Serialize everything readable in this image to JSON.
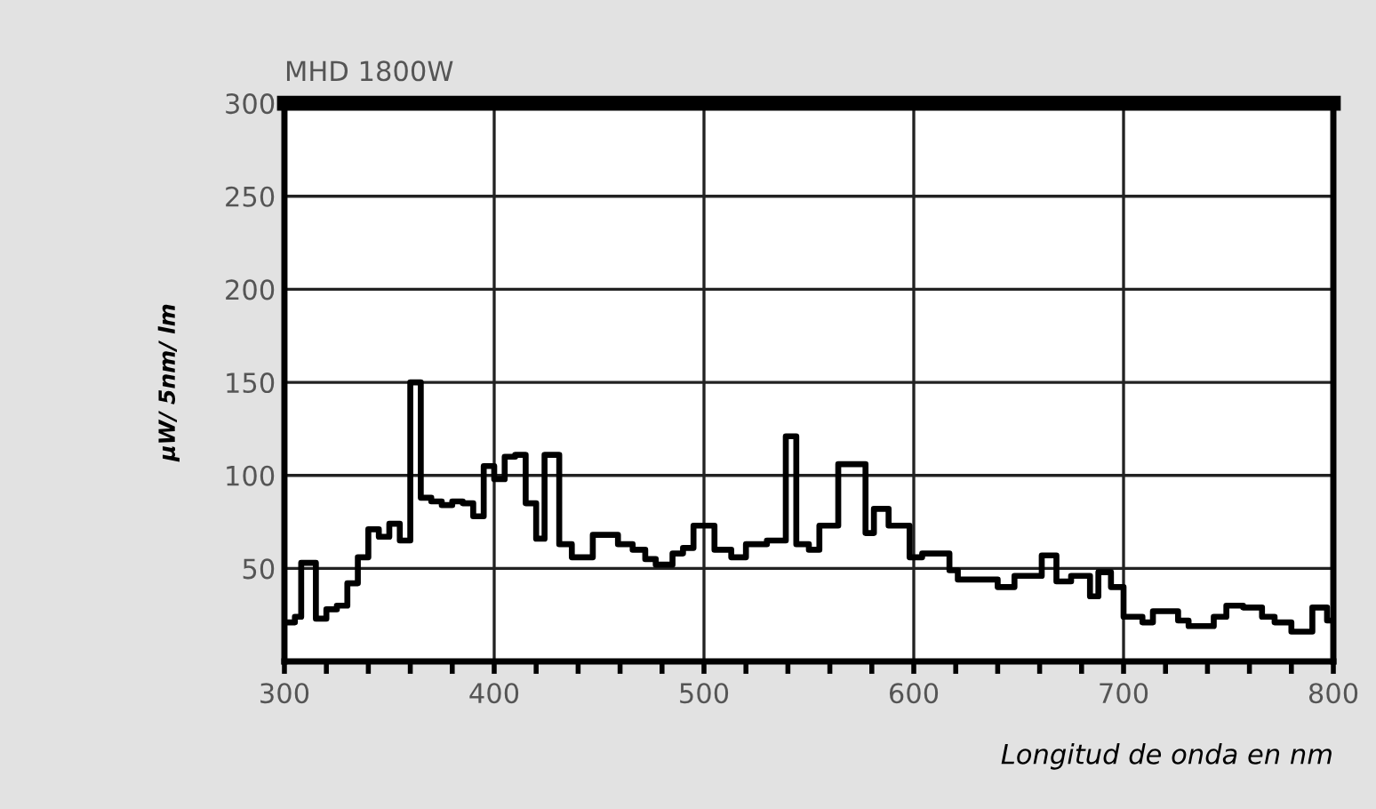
{
  "chart_data": {
    "type": "step",
    "title": "MHD 1800W",
    "ylabel": "µW/ 5nm/ lm",
    "xlabel": "Longitud de onda en nm",
    "x": [
      300,
      305,
      308,
      315,
      320,
      325,
      330,
      335,
      340,
      345,
      350,
      355,
      360,
      365,
      370,
      375,
      380,
      385,
      390,
      395,
      400,
      405,
      410,
      415,
      420,
      424,
      431,
      437,
      447,
      459,
      466,
      472,
      477,
      485,
      490,
      495,
      505,
      513,
      520,
      530,
      539,
      544,
      550,
      555,
      564,
      577,
      581,
      588,
      598,
      604,
      617,
      621,
      640,
      648,
      661,
      668,
      675,
      684,
      688,
      694,
      700,
      709,
      714,
      726,
      731,
      743,
      749,
      757,
      766,
      772,
      780,
      790,
      797,
      800
    ],
    "series": [
      {
        "color": "#000000",
        "values": [
          21,
          24,
          53,
          23,
          28,
          30,
          42,
          56,
          71,
          67,
          74,
          65,
          150,
          88,
          86,
          84,
          86,
          85,
          78,
          105,
          98,
          110,
          111,
          85,
          66,
          111,
          63,
          56,
          68,
          63,
          60,
          55,
          52,
          58,
          61,
          73,
          60,
          56,
          63,
          65,
          121,
          63,
          60,
          73,
          106,
          69,
          82,
          73,
          56,
          58,
          49,
          44,
          40,
          46,
          57,
          43,
          46,
          35,
          48,
          40,
          24,
          21,
          27,
          22,
          19,
          24,
          30,
          29,
          24,
          21,
          16,
          29,
          22,
          22
        ]
      }
    ],
    "xlim": [
      300,
      800
    ],
    "ylim": [
      0,
      300
    ],
    "xticks": [
      300,
      {
        "value": 320,
        "label": null
      },
      {
        "value": 340,
        "label": null
      },
      {
        "value": 360,
        "label": null
      },
      {
        "value": 380,
        "label": null
      },
      400,
      {
        "value": 420,
        "label": null
      },
      {
        "value": 440,
        "label": null
      },
      {
        "value": 460,
        "label": null
      },
      {
        "value": 480,
        "label": null
      },
      500,
      {
        "value": 520,
        "label": null
      },
      {
        "value": 540,
        "label": null
      },
      {
        "value": 560,
        "label": null
      },
      {
        "value": 580,
        "label": null
      },
      600,
      {
        "value": 620,
        "label": null
      },
      {
        "value": 640,
        "label": null
      },
      {
        "value": 660,
        "label": null
      },
      {
        "value": 680,
        "label": null
      },
      700,
      {
        "value": 720,
        "label": null
      },
      {
        "value": 740,
        "label": null
      },
      {
        "value": 760,
        "label": null
      },
      {
        "value": 780,
        "label": null
      },
      800
    ],
    "yticks": [
      50,
      100,
      150,
      200,
      250,
      300
    ],
    "grid": true,
    "legend": false
  }
}
